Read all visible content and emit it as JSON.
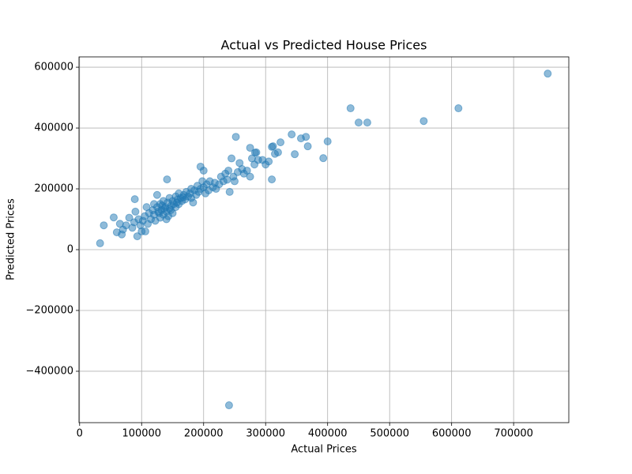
{
  "chart_data": {
    "type": "scatter",
    "title": "Actual vs Predicted House Prices",
    "x_label": "Actual Prices",
    "y_label": "Predicted Prices",
    "color": "#1f77b4",
    "grid": true,
    "xlim": [
      -1000,
      789000
    ],
    "ylim": [
      -569000,
      634000
    ],
    "xticks": [
      0,
      100000,
      200000,
      300000,
      400000,
      500000,
      600000,
      700000
    ],
    "yticks": [
      {
        "value": -400000,
        "label": "−400000"
      },
      {
        "value": -200000,
        "label": "−200000"
      },
      0,
      200000,
      400000,
      600000
    ],
    "x": [
      755000,
      611000,
      555000,
      437000,
      450000,
      464000,
      400000,
      393000,
      368000,
      365000,
      357000,
      342000,
      347000,
      324000,
      310000,
      310000,
      241000,
      252000,
      275000,
      283000,
      33000,
      39000,
      89000,
      141000,
      195000,
      200000,
      93000,
      106000,
      55000,
      60000,
      65000,
      68000,
      70000,
      75000,
      80000,
      85000,
      88000,
      90000,
      95000,
      98000,
      102000,
      105000,
      108000,
      110000,
      112000,
      115000,
      118000,
      120000,
      122000,
      125000,
      125000,
      128000,
      130000,
      130000,
      132000,
      135000,
      135000,
      138000,
      140000,
      140000,
      142000,
      145000,
      145000,
      148000,
      150000,
      150000,
      152000,
      155000,
      155000,
      158000,
      160000,
      160000,
      163000,
      165000,
      168000,
      170000,
      172000,
      175000,
      178000,
      180000,
      180000,
      183000,
      185000,
      188000,
      190000,
      192000,
      195000,
      198000,
      200000,
      203000,
      205000,
      208000,
      210000,
      215000,
      218000,
      220000,
      225000,
      228000,
      232000,
      235000,
      238000,
      240000,
      242000,
      245000,
      248000,
      250000,
      255000,
      258000,
      262000,
      265000,
      270000,
      275000,
      278000,
      282000,
      285000,
      288000,
      295000,
      300000,
      305000,
      312000,
      315000,
      320000,
      100000,
      120000,
      133000,
      147000,
      157000,
      167000,
      143000,
      127000,
      137000
    ],
    "y": [
      579000,
      465000,
      423000,
      465000,
      418000,
      418000,
      356000,
      301000,
      340000,
      371000,
      366000,
      379000,
      314000,
      353000,
      338000,
      231000,
      -512000,
      371000,
      335000,
      319000,
      21000,
      80000,
      166000,
      231000,
      273000,
      260000,
      44000,
      60000,
      106000,
      57000,
      85000,
      50000,
      66000,
      80000,
      105000,
      72000,
      90000,
      125000,
      100000,
      80000,
      95000,
      110000,
      140000,
      85000,
      120000,
      100000,
      130000,
      115000,
      95000,
      140000,
      180000,
      120000,
      105000,
      150000,
      130000,
      115000,
      160000,
      140000,
      125000,
      100000,
      155000,
      135000,
      170000,
      145000,
      120000,
      160000,
      150000,
      175000,
      140000,
      165000,
      150000,
      185000,
      170000,
      160000,
      180000,
      165000,
      190000,
      175000,
      185000,
      200000,
      170000,
      155000,
      195000,
      180000,
      210000,
      190000,
      200000,
      225000,
      205000,
      185000,
      215000,
      195000,
      225000,
      205000,
      220000,
      200000,
      215000,
      240000,
      225000,
      250000,
      230000,
      260000,
      190000,
      300000,
      240000,
      225000,
      255000,
      285000,
      265000,
      250000,
      260000,
      240000,
      300000,
      280000,
      320000,
      295000,
      295000,
      280000,
      290000,
      340000,
      315000,
      320000,
      60000,
      150000,
      145000,
      130000,
      155000,
      172000,
      110000,
      125000,
      135000
    ]
  }
}
